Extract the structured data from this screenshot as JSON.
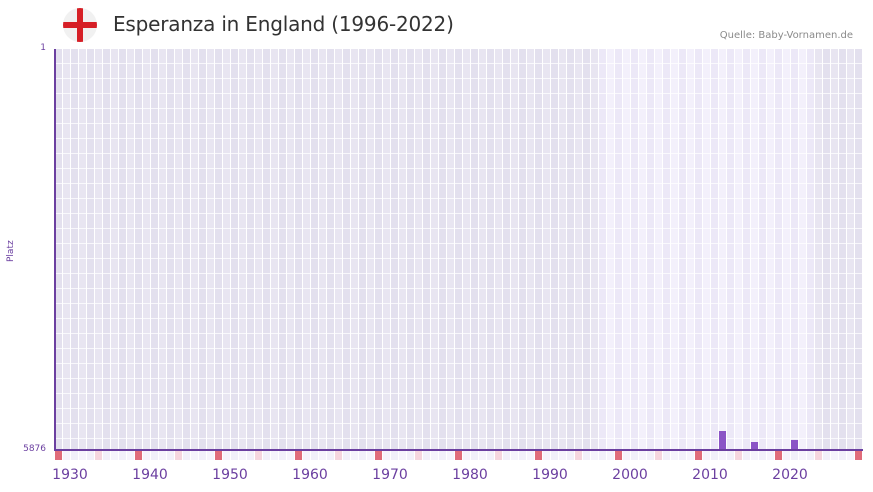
{
  "header": {
    "flag_icon": "england-flag-icon",
    "title": "Esperanza in England (1996-2022)",
    "source": "Quelle: Baby-Vornamen.de"
  },
  "colors": {
    "accent": "#6b3fa0",
    "bar": "#8b54c6",
    "decade_marker": "#e06c7a",
    "half_decade_marker": "#f5d5de",
    "bg_inactive_a": "#e3e0ee",
    "bg_inactive_b": "#e8e5f1",
    "bg_active_a": "#ece8f7",
    "bg_active_b": "#f3f0fb"
  },
  "chart_data": {
    "type": "bar",
    "title": "Esperanza in England (1996-2022)",
    "xlabel": "",
    "ylabel": "Platz",
    "ylim": [
      5876,
      1
    ],
    "y_inverted": true,
    "y_ticks": [
      "1",
      "5876"
    ],
    "x_range": [
      1928,
      2028
    ],
    "x_ticks": [
      "1930",
      "1940",
      "1950",
      "1960",
      "1970",
      "1980",
      "1990",
      "2000",
      "2010",
      "2020"
    ],
    "active_range": [
      1996,
      2022
    ],
    "grid": true,
    "legend": null,
    "categories": [
      "2011",
      "2015",
      "2020"
    ],
    "series": [
      {
        "name": "Platz",
        "values": [
          5598,
          5759,
          5729
        ]
      }
    ],
    "annotation": "Quelle: Baby-Vornamen.de"
  },
  "axis": {
    "y_top_label": "1",
    "y_bottom_label": "5876",
    "y_title": "Platz",
    "x_labels": [
      "1930",
      "1940",
      "1950",
      "1960",
      "1970",
      "1980",
      "1990",
      "2000",
      "2010",
      "2020"
    ]
  }
}
